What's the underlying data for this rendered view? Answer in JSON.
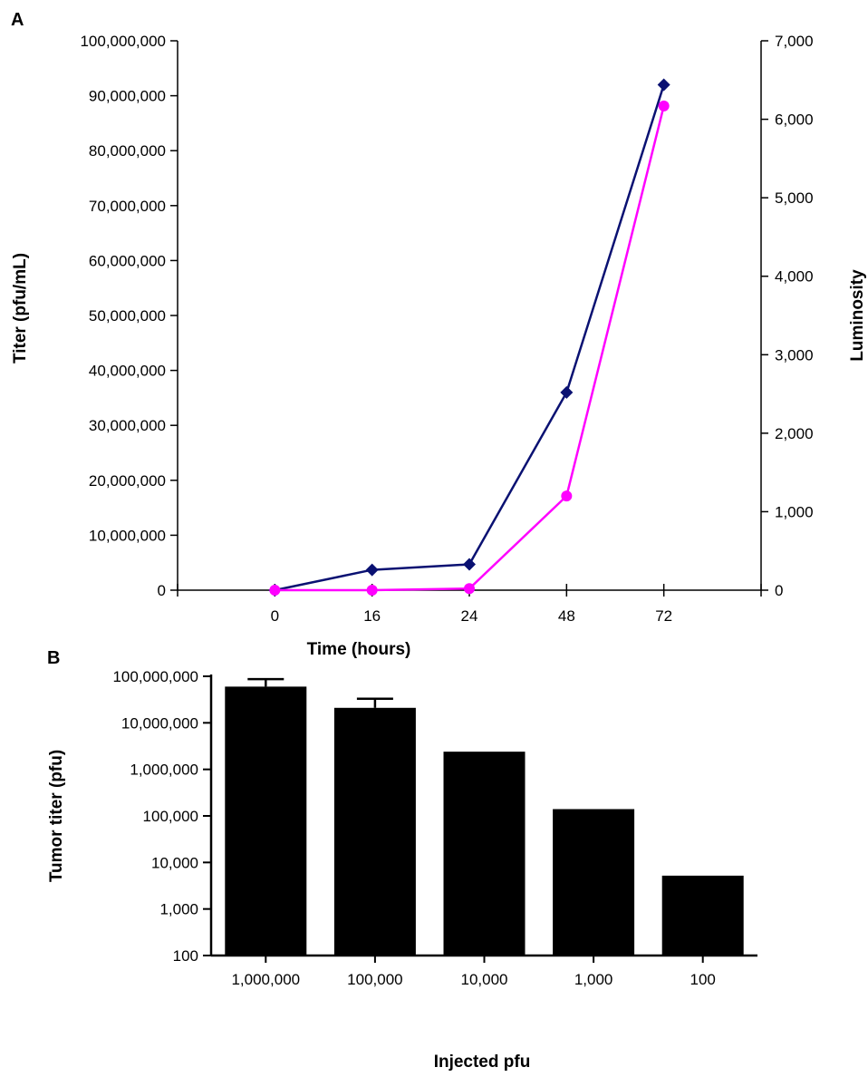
{
  "chart_data": [
    {
      "panel_label": "A",
      "type": "line",
      "xlabel": "Time (hours)",
      "ylabel": "Titer (pfu/mL)",
      "y2label": "Luminosity",
      "x_categories": [
        "0",
        "16",
        "24",
        "48",
        "72"
      ],
      "ylim": [
        0,
        100000000
      ],
      "y_ticks": [
        0,
        10000000,
        20000000,
        30000000,
        40000000,
        50000000,
        60000000,
        70000000,
        80000000,
        90000000,
        100000000
      ],
      "y_tick_labels": [
        "0",
        "10,000,000",
        "20,000,000",
        "30,000,000",
        "40,000,000",
        "50,000,000",
        "60,000,000",
        "70,000,000",
        "80,000,000",
        "90,000,000",
        "100,000,000"
      ],
      "y2lim": [
        0,
        7000
      ],
      "y2_ticks": [
        0,
        1000,
        2000,
        3000,
        4000,
        5000,
        6000,
        7000
      ],
      "y2_tick_labels": [
        "0",
        "1,000",
        "2,000",
        "3,000",
        "4,000",
        "5,000",
        "6,000",
        "7,000"
      ],
      "grid": false,
      "legend": "none",
      "series": [
        {
          "axis": "left",
          "color": "#0a1172",
          "marker": "diamond",
          "values": [
            0,
            3700000,
            4700000,
            36000000,
            92000000
          ]
        },
        {
          "axis": "right",
          "color": "#ff00ff",
          "marker": "circle",
          "values": [
            0,
            0,
            20,
            1200,
            6170
          ]
        }
      ]
    },
    {
      "panel_label": "B",
      "type": "bar",
      "xlabel": "Injected pfu",
      "ylabel": "Tumor titer (pfu)",
      "yscale": "log",
      "ylim": [
        100,
        100000000
      ],
      "y_ticks": [
        100,
        1000,
        10000,
        100000,
        1000000,
        10000000,
        100000000
      ],
      "y_tick_labels": [
        "100",
        "1,000",
        "10,000",
        "100,000",
        "1,000,000",
        "10,000,000",
        "100,000,000"
      ],
      "categories": [
        "1,000,000",
        "100,000",
        "10,000",
        "1,000",
        "100"
      ],
      "values": [
        60000000,
        21000000,
        2400000,
        140000,
        5200
      ],
      "error_upper": [
        87000000,
        33000000,
        2500000,
        140000,
        5200
      ],
      "bar_color": "#000000",
      "grid": false,
      "legend": "none"
    }
  ]
}
